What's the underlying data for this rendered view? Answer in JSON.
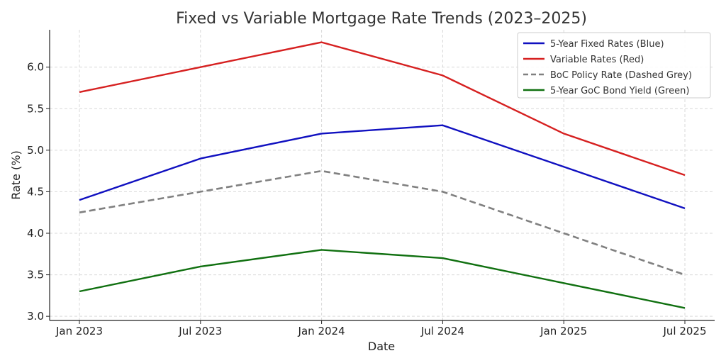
{
  "chart_data": {
    "type": "line",
    "title": "Fixed vs Variable Mortgage Rate Trends (2023–2025)",
    "xlabel": "Date",
    "ylabel": "Rate (%)",
    "x_ticks": [
      "Jan 2023",
      "Jul 2023",
      "Jan 2024",
      "Jul 2024",
      "Jan 2025",
      "Jul 2025"
    ],
    "y_ticks": [
      "3.0",
      "3.5",
      "4.0",
      "4.5",
      "5.0",
      "5.5",
      "6.0"
    ],
    "ylim": [
      2.95,
      6.45
    ],
    "grid": true,
    "legend_position": "top-right",
    "series": [
      {
        "name": "5-Year Fixed Rates (Blue)",
        "color": "#1010c0",
        "dashed": false,
        "values": [
          4.4,
          4.9,
          5.2,
          5.3,
          4.8,
          4.3
        ]
      },
      {
        "name": "Variable Rates (Red)",
        "color": "#d62020",
        "dashed": false,
        "values": [
          5.7,
          6.0,
          6.3,
          5.9,
          5.2,
          4.7
        ]
      },
      {
        "name": "BoC Policy Rate (Dashed Grey)",
        "color": "#808080",
        "dashed": true,
        "values": [
          4.25,
          4.5,
          4.75,
          4.5,
          4.0,
          3.5
        ]
      },
      {
        "name": "5-Year GoC Bond Yield (Green)",
        "color": "#107010",
        "dashed": false,
        "values": [
          3.3,
          3.6,
          3.8,
          3.7,
          3.4,
          3.1
        ]
      }
    ]
  }
}
